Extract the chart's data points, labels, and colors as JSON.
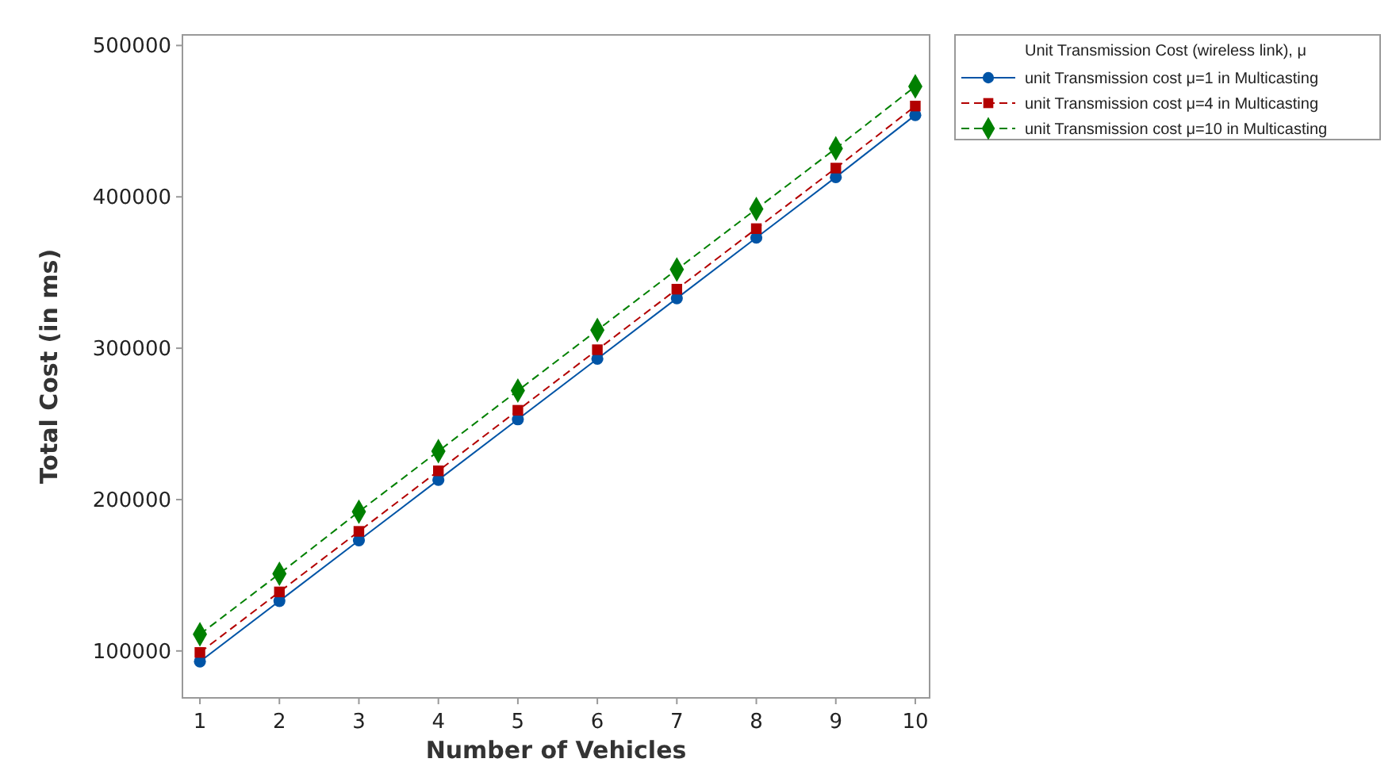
{
  "chart_data": {
    "type": "line",
    "xlabel": "Number of Vehicles",
    "ylabel": "Total Cost (in ms)",
    "legend_title": "Unit Transmission Cost (wireless link), μ",
    "x": [
      1,
      2,
      3,
      4,
      5,
      6,
      7,
      8,
      9,
      10
    ],
    "xlim": [
      0.78,
      10.18
    ],
    "xticks": [
      1,
      2,
      3,
      4,
      5,
      6,
      7,
      8,
      9,
      10
    ],
    "ylim": [
      69000,
      507000
    ],
    "yticks": [
      100000,
      200000,
      300000,
      400000,
      500000
    ],
    "legend": "top right",
    "grid": false,
    "series": [
      {
        "name": "unit Transmission cost μ=1 in Multicasting",
        "color": "#0054a6",
        "marker": "circle",
        "line_style": "solid",
        "values": [
          93000,
          133000,
          173000,
          213000,
          253000,
          293000,
          333000,
          373000,
          413000,
          454000
        ]
      },
      {
        "name": "unit Transmission cost μ=4 in Multicasting",
        "color": "#b30000",
        "marker": "square",
        "line_style": "dashed",
        "values": [
          99000,
          139000,
          179000,
          219000,
          259000,
          299000,
          339000,
          379000,
          419000,
          460000
        ]
      },
      {
        "name": "unit Transmission cost μ=10 in Multicasting",
        "color": "#008000",
        "marker": "diamond",
        "line_style": "dashed",
        "values": [
          111000,
          151000,
          192000,
          232000,
          272000,
          312000,
          352000,
          392000,
          432000,
          473000
        ]
      }
    ]
  }
}
